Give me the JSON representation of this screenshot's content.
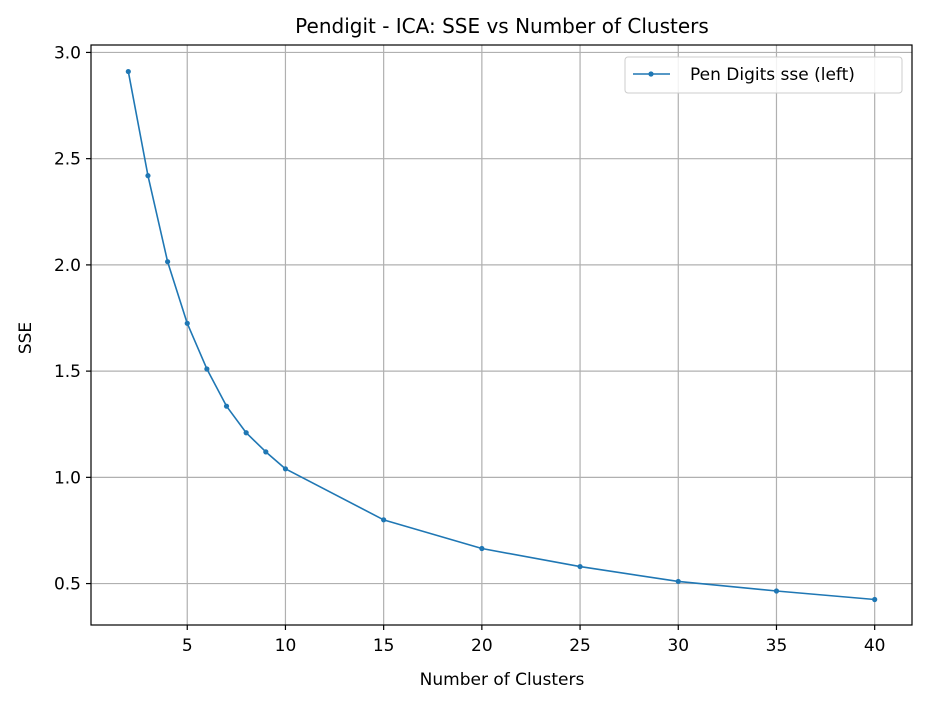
{
  "chart_data": {
    "type": "line",
    "title": "Pendigit - ICA: SSE vs Number of Clusters",
    "xlabel": "Number of Clusters",
    "ylabel": "SSE",
    "xlim": [
      0.1,
      41.9
    ],
    "ylim": [
      0.305,
      3.035
    ],
    "xticks": [
      5,
      10,
      15,
      20,
      25,
      30,
      35,
      40
    ],
    "yticks": [
      0.5,
      1.0,
      1.5,
      2.0,
      2.5,
      3.0
    ],
    "xtick_labels": [
      "5",
      "10",
      "15",
      "20",
      "25",
      "30",
      "35",
      "40"
    ],
    "ytick_labels": [
      "0.5",
      "1.0",
      "1.5",
      "2.0",
      "2.5",
      "3.0"
    ],
    "grid": true,
    "legend_position": "top-right",
    "series": [
      {
        "name": "Pen Digits sse (left)",
        "color": "#1f77b4",
        "marker": "dot",
        "x": [
          2,
          3,
          4,
          5,
          6,
          7,
          8,
          9,
          10,
          15,
          20,
          25,
          30,
          35,
          40
        ],
        "y": [
          2.91,
          2.42,
          2.015,
          1.725,
          1.51,
          1.335,
          1.21,
          1.12,
          1.04,
          0.8,
          0.665,
          0.58,
          0.51,
          0.465,
          0.425
        ]
      }
    ]
  }
}
